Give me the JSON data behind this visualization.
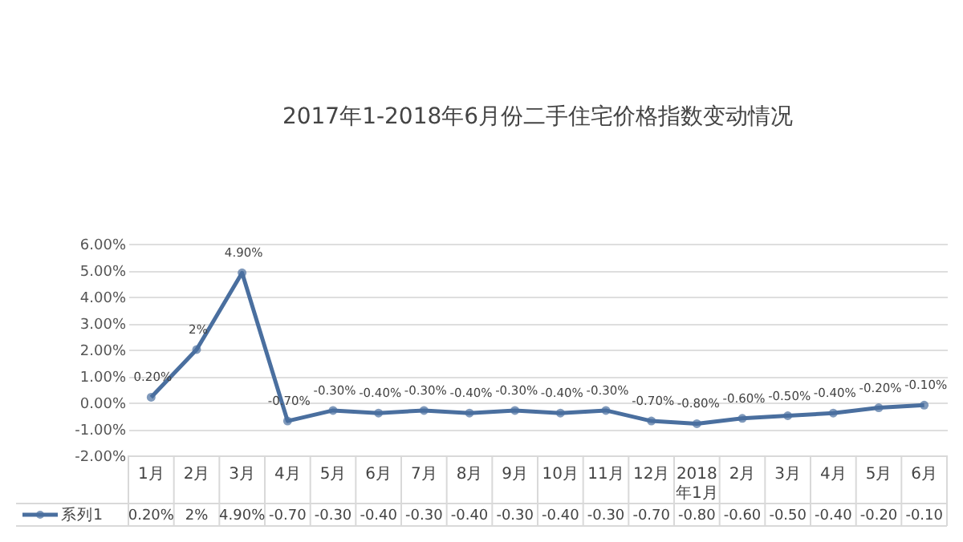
{
  "chart_data": {
    "type": "line",
    "title": "2017年1-2018年6月份二手住宅价格指数变动情况",
    "categories": [
      "1月",
      "2月",
      "3月",
      "4月",
      "5月",
      "6月",
      "7月",
      "8月",
      "9月",
      "10月",
      "11月",
      "12月",
      "2018年1月",
      "2月",
      "3月",
      "4月",
      "5月",
      "6月"
    ],
    "series": [
      {
        "name": "系列1",
        "color": "#4a6f9f",
        "values": [
          0.2,
          2,
          4.9,
          -0.7,
          -0.3,
          -0.4,
          -0.3,
          -0.4,
          -0.3,
          -0.4,
          -0.3,
          -0.7,
          -0.8,
          -0.6,
          -0.5,
          -0.4,
          -0.2,
          -0.1
        ],
        "value_labels": [
          "0.20%",
          "2%",
          "4.90%",
          "-0.70%",
          "-0.30%",
          "-0.40%",
          "-0.30%",
          "-0.40%",
          "-0.30%",
          "-0.40%",
          "-0.30%",
          "-0.70%",
          "-0.80%",
          "-0.60%",
          "-0.50%",
          "-0.40%",
          "-0.20%",
          "-0.10%"
        ]
      }
    ],
    "annotations": [
      "0.20%",
      "2%",
      "4.90%",
      "-0.70",
      "-0.30",
      "-0.40",
      "-0.30",
      "-0.40",
      "-0.30",
      "-0.40",
      "-0.30",
      "-0.70",
      "-0.80",
      "-0.60",
      "-0.50",
      "-0.40",
      "-0.20",
      "-0.10"
    ],
    "ylim": [
      -2,
      6
    ],
    "yticks": [
      {
        "value": -2,
        "label": "-2.00%"
      },
      {
        "value": -1,
        "label": "-1.00%"
      },
      {
        "value": 0,
        "label": "0.00%"
      },
      {
        "value": 1,
        "label": "1.00%"
      },
      {
        "value": 2,
        "label": "2.00%"
      },
      {
        "value": 3,
        "label": "3.00%"
      },
      {
        "value": 4,
        "label": "4.00%"
      },
      {
        "value": 5,
        "label": "5.00%"
      },
      {
        "value": 6,
        "label": "6.00%"
      }
    ],
    "grid": "y",
    "marker": "circle",
    "line_style": "solid"
  }
}
